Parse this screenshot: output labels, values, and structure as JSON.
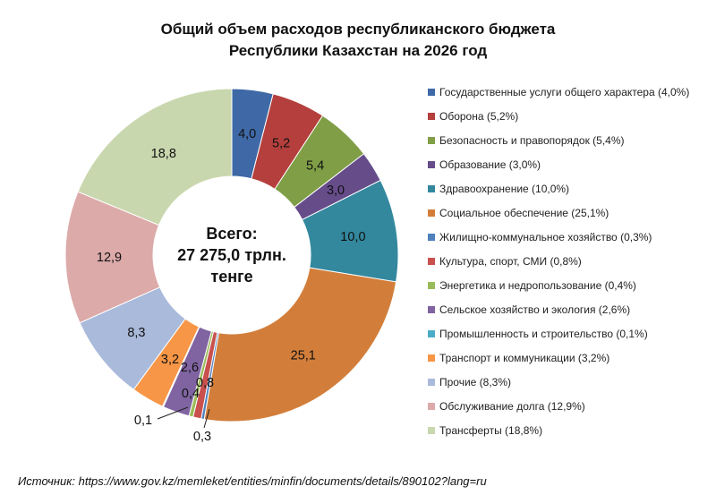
{
  "chart_data": {
    "type": "pie",
    "donut": true,
    "title": [
      "Общий объем расходов республиканского бюджета",
      "Республики Казахстан на 2026 год"
    ],
    "center_text": [
      "Всего:",
      "27 275,0 трлн.",
      "тенге"
    ],
    "legend_position": "right",
    "slices": [
      {
        "name": "Государственные услуги общего характера (4,0%)",
        "value": 4.0,
        "label": "4,0",
        "color": "#3F69A6"
      },
      {
        "name": "Оборона (5,2%)",
        "value": 5.2,
        "label": "5,2",
        "color": "#B43F3C"
      },
      {
        "name": "Безопасность и правопорядок (5,4%)",
        "value": 5.4,
        "label": "5,4",
        "color": "#7F9E46"
      },
      {
        "name": "Образование (3,0%)",
        "value": 3.0,
        "label": "3,0",
        "color": "#664D8A"
      },
      {
        "name": "Здравоохранение (10,0%)",
        "value": 10.0,
        "label": "10,0",
        "color": "#33889E"
      },
      {
        "name": "Социальное обеспечение (25,1%)",
        "value": 25.1,
        "label": "25,1",
        "color": "#D27E3A"
      },
      {
        "name": "Жилищно-коммунальное хозяйство (0,3%)",
        "value": 0.3,
        "label": "0,3",
        "color": "#4F81BD"
      },
      {
        "name": "Культура, спорт, СМИ (0,8%)",
        "value": 0.8,
        "label": "0,8",
        "color": "#C9504D"
      },
      {
        "name": "Энергетика и недропользование (0,4%)",
        "value": 0.4,
        "label": "0,4",
        "color": "#9BBB59"
      },
      {
        "name": "Сельское хозяйство и экология (2,6%)",
        "value": 2.6,
        "label": "2,6",
        "color": "#8064A2"
      },
      {
        "name": "Промышленность и строительство (0,1%)",
        "value": 0.1,
        "label": "0,1",
        "color": "#4BACC6"
      },
      {
        "name": "Транспорт и коммуникации (3,2%)",
        "value": 3.2,
        "label": "3,2",
        "color": "#F79646"
      },
      {
        "name": "Прочие (8,3%)",
        "value": 8.3,
        "label": "8,3",
        "color": "#A9BADB"
      },
      {
        "name": "Обслуживание долга (12,9%)",
        "value": 12.9,
        "label": "12,9",
        "color": "#DCAAA9"
      },
      {
        "name": "Трансферты (18,8%)",
        "value": 18.8,
        "label": "18,8",
        "color": "#C9D7AE"
      }
    ]
  },
  "source": "Источник: https://www.gov.kz/memleket/entities/minfin/documents/details/890102?lang=ru"
}
